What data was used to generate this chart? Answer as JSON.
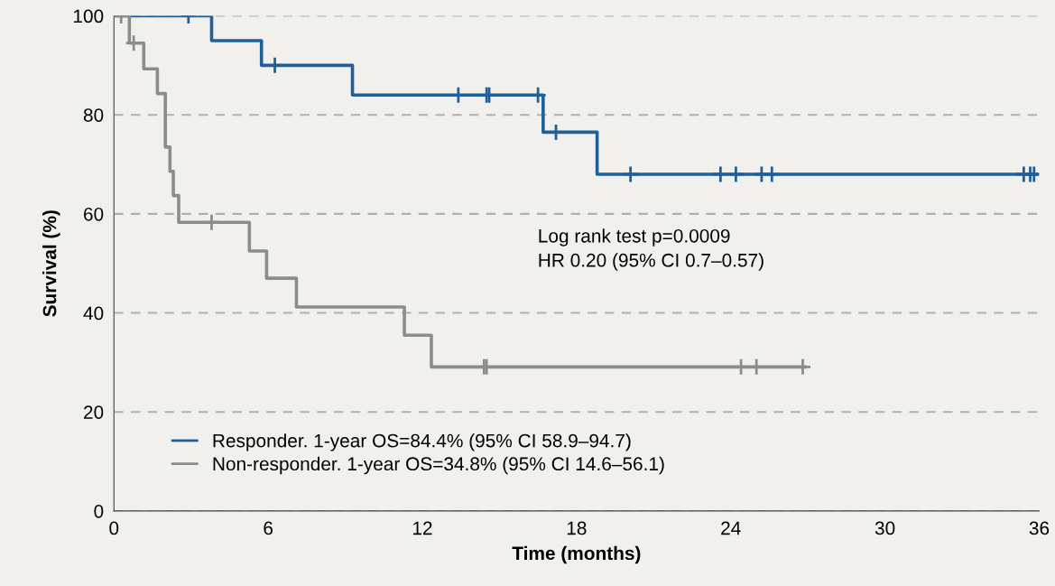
{
  "chart_data": {
    "type": "step",
    "xlabel": "Time (months)",
    "ylabel": "Survival (%)",
    "xlim": [
      0,
      36
    ],
    "xticks": [
      0,
      6,
      12,
      18,
      24,
      30,
      36
    ],
    "ylim": [
      0,
      100
    ],
    "yticks": [
      0,
      20,
      40,
      60,
      80,
      100
    ],
    "grid": "y",
    "legend": "bottom left",
    "annotations": [
      "Log rank test p=0.0009\nHR 0.20 (95% CI 0.7–0.57)"
    ],
    "series": [
      {
        "name": "Responder. 1-year OS=84.4% (95% CI 58.9–94.7)",
        "color": "#1f5f9a",
        "x": [
          0,
          3.8,
          5.74,
          9.28,
          16.7,
          18.8,
          35.9
        ],
        "values": [
          100,
          95,
          90,
          84,
          76.5,
          68,
          68
        ]
      },
      {
        "name": "Non-responder. 1-year OS=34.8% (95% CI 14.6–56.1)",
        "color": "#8c8c8c",
        "x": [
          0,
          0.6,
          1.16,
          1.69,
          2.0,
          2.18,
          2.31,
          2.52,
          5.27,
          5.94,
          7.1,
          11.3,
          12.35,
          26.9
        ],
        "values": [
          100,
          94.5,
          89.3,
          84.3,
          73.5,
          68.6,
          63.7,
          58.3,
          52.5,
          47,
          41.2,
          35.5,
          29.1,
          29.1
        ]
      },
      {
        "color": "#1f5f9a",
        "type": "scatter",
        "marker": "cross",
        "x": [
          2.9,
          6.26,
          13.4,
          14.5,
          14.6,
          16.5,
          17.2,
          20.1,
          23.6,
          24.2,
          25.2,
          25.6,
          35.4,
          35.65,
          35.8
        ],
        "values": [
          100,
          90,
          84,
          84,
          84,
          84,
          76.5,
          68,
          68,
          68,
          68,
          68,
          68,
          68,
          68
        ]
      },
      {
        "color": "#8c8c8c",
        "type": "scatter",
        "marker": "cross",
        "x": [
          0.28,
          0.77,
          3.8,
          14.4,
          14.5,
          24.4,
          25.0,
          26.8
        ],
        "values": [
          100,
          94.5,
          58.3,
          29.1,
          29.1,
          29.1,
          29.1,
          29.1
        ]
      }
    ]
  }
}
